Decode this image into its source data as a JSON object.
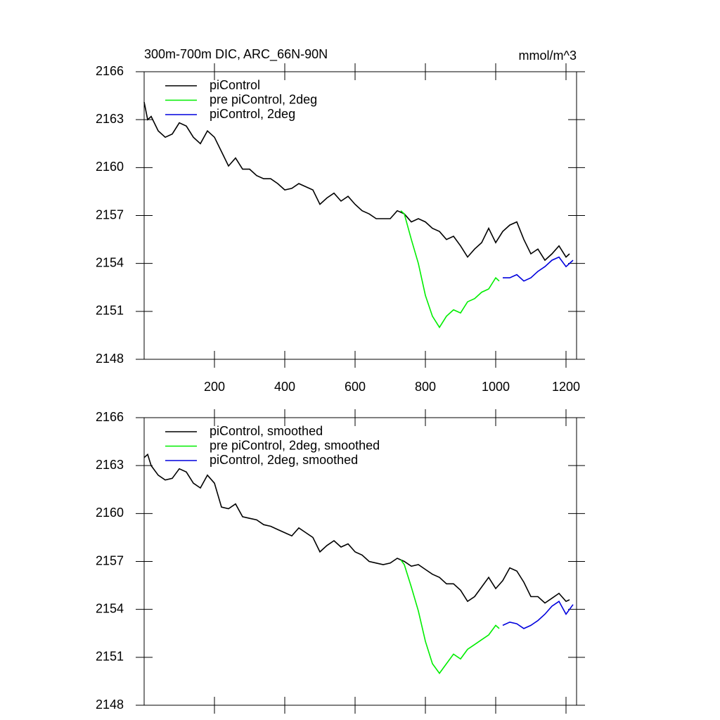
{
  "chart_data": [
    {
      "type": "line",
      "title": "300m-700m DIC, ARC_66N-90N",
      "subtitle": "mmol/m^3",
      "xlim": [
        0,
        1230
      ],
      "xticks": [
        200,
        400,
        600,
        800,
        1000,
        1200
      ],
      "ylim": [
        2148,
        2166
      ],
      "yticks": [
        2148,
        2151,
        2154,
        2157,
        2160,
        2163,
        2166
      ],
      "legend": "top-left",
      "series": [
        {
          "name": "piControl",
          "color": "#000000",
          "x": [
            0,
            10,
            20,
            40,
            60,
            80,
            100,
            120,
            140,
            160,
            180,
            200,
            220,
            240,
            260,
            280,
            300,
            320,
            340,
            360,
            380,
            400,
            420,
            440,
            460,
            480,
            500,
            520,
            540,
            560,
            580,
            600,
            620,
            640,
            660,
            680,
            700,
            720,
            740,
            760,
            780,
            800,
            820,
            840,
            860,
            880,
            900,
            920,
            940,
            960,
            980,
            1000,
            1020,
            1040,
            1060,
            1080,
            1100,
            1120,
            1140,
            1160,
            1180,
            1200,
            1210
          ],
          "values": [
            2164.1,
            2163.0,
            2163.2,
            2162.3,
            2161.9,
            2162.1,
            2162.8,
            2162.6,
            2161.9,
            2161.5,
            2162.3,
            2161.9,
            2161.0,
            2160.1,
            2160.6,
            2159.9,
            2159.9,
            2159.5,
            2159.3,
            2159.3,
            2159.0,
            2158.6,
            2158.7,
            2159.0,
            2158.8,
            2158.6,
            2157.7,
            2158.1,
            2158.4,
            2157.9,
            2158.2,
            2157.7,
            2157.3,
            2157.1,
            2156.8,
            2156.8,
            2156.8,
            2157.3,
            2157.1,
            2156.6,
            2156.8,
            2156.6,
            2156.2,
            2156.0,
            2155.5,
            2155.7,
            2155.1,
            2154.4,
            2154.9,
            2155.3,
            2156.2,
            2155.3,
            2156.0,
            2156.4,
            2156.6,
            2155.5,
            2154.6,
            2154.9,
            2154.2,
            2154.6,
            2155.1,
            2154.4,
            2154.6
          ]
        },
        {
          "name": "pre piControl, 2deg",
          "color": "#00ee00",
          "x": [
            730,
            740,
            760,
            780,
            800,
            820,
            840,
            860,
            880,
            900,
            920,
            940,
            960,
            980,
            1000,
            1010
          ],
          "values": [
            2157.3,
            2157.1,
            2155.5,
            2154.0,
            2152.0,
            2150.7,
            2150.0,
            2150.7,
            2151.1,
            2150.9,
            2151.6,
            2151.8,
            2152.2,
            2152.4,
            2153.1,
            2152.9
          ]
        },
        {
          "name": "piControl, 2deg",
          "color": "#0000dd",
          "x": [
            1020,
            1040,
            1060,
            1080,
            1100,
            1120,
            1140,
            1160,
            1180,
            1200,
            1220
          ],
          "values": [
            2153.1,
            2153.1,
            2153.3,
            2152.9,
            2153.1,
            2153.5,
            2153.8,
            2154.2,
            2154.4,
            2153.8,
            2154.2
          ]
        }
      ]
    },
    {
      "type": "line",
      "xlim": [
        0,
        1230
      ],
      "xticks": [
        200,
        400,
        600,
        800,
        1000,
        1200
      ],
      "ylim": [
        2148,
        2166
      ],
      "yticks": [
        2148,
        2151,
        2154,
        2157,
        2160,
        2163,
        2166
      ],
      "legend": "top-left",
      "series": [
        {
          "name": "piControl, smoothed",
          "color": "#000000",
          "x": [
            0,
            10,
            20,
            40,
            60,
            80,
            100,
            120,
            140,
            160,
            180,
            200,
            220,
            240,
            260,
            280,
            300,
            320,
            340,
            360,
            380,
            400,
            420,
            440,
            460,
            480,
            500,
            520,
            540,
            560,
            580,
            600,
            620,
            640,
            660,
            680,
            700,
            720,
            740,
            760,
            780,
            800,
            820,
            840,
            860,
            880,
            900,
            920,
            940,
            960,
            980,
            1000,
            1020,
            1040,
            1060,
            1080,
            1100,
            1120,
            1140,
            1160,
            1180,
            1200,
            1210
          ],
          "values": [
            2163.5,
            2163.7,
            2163.0,
            2162.4,
            2162.1,
            2162.2,
            2162.8,
            2162.6,
            2161.9,
            2161.6,
            2162.4,
            2161.9,
            2160.4,
            2160.3,
            2160.6,
            2159.8,
            2159.7,
            2159.6,
            2159.3,
            2159.2,
            2159.0,
            2158.8,
            2158.6,
            2159.1,
            2158.8,
            2158.5,
            2157.6,
            2158.0,
            2158.3,
            2157.9,
            2158.1,
            2157.6,
            2157.4,
            2157.0,
            2156.9,
            2156.8,
            2156.9,
            2157.2,
            2157.0,
            2156.7,
            2156.8,
            2156.5,
            2156.2,
            2156.0,
            2155.6,
            2155.6,
            2155.2,
            2154.5,
            2154.8,
            2155.4,
            2156.0,
            2155.3,
            2155.8,
            2156.6,
            2156.4,
            2155.7,
            2154.8,
            2154.8,
            2154.4,
            2154.7,
            2155.0,
            2154.5,
            2154.6
          ]
        },
        {
          "name": "pre piControl, 2deg, smoothed",
          "color": "#00ee00",
          "x": [
            730,
            740,
            760,
            780,
            800,
            820,
            840,
            860,
            880,
            900,
            920,
            940,
            960,
            980,
            1000,
            1010
          ],
          "values": [
            2157.1,
            2156.8,
            2155.4,
            2153.9,
            2152.0,
            2150.6,
            2150.0,
            2150.6,
            2151.2,
            2150.9,
            2151.5,
            2151.8,
            2152.1,
            2152.4,
            2153.0,
            2152.8
          ]
        },
        {
          "name": "piControl, 2deg, smoothed",
          "color": "#0000dd",
          "x": [
            1020,
            1040,
            1060,
            1080,
            1100,
            1120,
            1140,
            1160,
            1180,
            1200,
            1220
          ],
          "values": [
            2153.0,
            2153.2,
            2153.1,
            2152.8,
            2153.0,
            2153.3,
            2153.7,
            2154.2,
            2154.5,
            2153.7,
            2154.3
          ]
        }
      ]
    }
  ]
}
